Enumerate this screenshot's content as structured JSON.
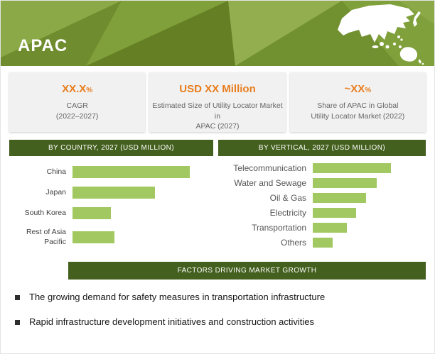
{
  "header": {
    "title": "APAC"
  },
  "colors": {
    "banner_green": "#7d9734",
    "dark_green": "#44601f",
    "bar_green": "#a2c861",
    "accent_orange": "#e87d1e"
  },
  "stats": {
    "boxes": [
      {
        "value": "XX.X",
        "suffix": "%",
        "desc": "CAGR\n(2022–2027)"
      },
      {
        "value": "USD XX Million",
        "suffix": "",
        "desc": "Estimated Size of Utility Locator Market in\nAPAC (2027)"
      },
      {
        "value": "~XX",
        "suffix": "%",
        "desc": "Share of APAC in Global\nUtility Locator Market (2022)"
      }
    ]
  },
  "chart_data": [
    {
      "type": "bar",
      "orientation": "horizontal",
      "title": "BY COUNTRY, 2027 (USD MILLION)",
      "categories": [
        "China",
        "Japan",
        "South Korea",
        "Rest of Asia Pacific"
      ],
      "values": [
        100,
        70,
        33,
        36
      ],
      "note": "numeric values not shown in source (XX placeholders); values are relative bar lengths with longest bar = 100",
      "bar_color": "#a2c861",
      "legend": false,
      "grid": false
    },
    {
      "type": "bar",
      "orientation": "horizontal",
      "title": "BY VERTICAL, 2027 (USD MILLION)",
      "categories": [
        "Telecommunication",
        "Water and Sewage",
        "Oil & Gas",
        "Electricity",
        "Transportation",
        "Others"
      ],
      "values": [
        100,
        82,
        68,
        55,
        44,
        25
      ],
      "note": "numeric values not shown in source (XX placeholders); values are relative bar lengths with longest bar = 100",
      "bar_color": "#a2c861",
      "legend": false,
      "grid": false
    }
  ],
  "factors": {
    "title": "FACTORS DRIVING MARKET GROWTH",
    "bullets": [
      "The growing demand for safety measures in transportation infrastructure",
      "Rapid infrastructure development initiatives and construction activities"
    ]
  },
  "map_icon": "asia-pacific-map"
}
